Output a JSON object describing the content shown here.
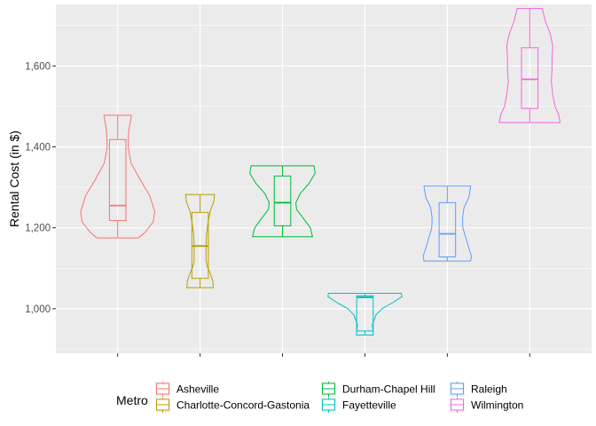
{
  "chart_data": {
    "type": "violin",
    "title": "",
    "xlabel": "",
    "ylabel": "Rental Cost (in $)",
    "ylim": [
      890,
      1752
    ],
    "yticks": [
      1000,
      1200,
      1400,
      1600
    ],
    "ytick_labels": [
      "1,000",
      "1,200",
      "1,400",
      "1,600"
    ],
    "grid": true,
    "legend_title": "Metro",
    "legend_position": "bottom",
    "series": [
      {
        "name": "Asheville",
        "color": "#F8766D",
        "min": 1175,
        "q1": 1218,
        "median": 1255,
        "q3": 1418,
        "max": 1478,
        "profile": [
          [
            1175,
            0.56
          ],
          [
            1190,
            0.75
          ],
          [
            1215,
            0.96
          ],
          [
            1240,
            1.0
          ],
          [
            1280,
            0.86
          ],
          [
            1320,
            0.6
          ],
          [
            1360,
            0.36
          ],
          [
            1400,
            0.28
          ],
          [
            1440,
            0.3
          ],
          [
            1478,
            0.37
          ]
        ]
      },
      {
        "name": "Charlotte-Concord-Gastonia",
        "color": "#B79F00",
        "min": 1052,
        "q1": 1075,
        "median": 1155,
        "q3": 1238,
        "max": 1282,
        "profile": [
          [
            1052,
            0.36
          ],
          [
            1070,
            0.34
          ],
          [
            1090,
            0.26
          ],
          [
            1105,
            0.19
          ],
          [
            1120,
            0.16
          ],
          [
            1150,
            0.16
          ],
          [
            1180,
            0.17
          ],
          [
            1210,
            0.21
          ],
          [
            1240,
            0.27
          ],
          [
            1265,
            0.37
          ],
          [
            1282,
            0.39
          ]
        ]
      },
      {
        "name": "Durham-Chapel Hill",
        "color": "#00BA38",
        "min": 1178,
        "q1": 1205,
        "median": 1262,
        "q3": 1328,
        "max": 1353,
        "profile": [
          [
            1178,
            0.81
          ],
          [
            1200,
            0.75
          ],
          [
            1225,
            0.55
          ],
          [
            1245,
            0.38
          ],
          [
            1262,
            0.36
          ],
          [
            1285,
            0.48
          ],
          [
            1310,
            0.72
          ],
          [
            1335,
            0.88
          ],
          [
            1353,
            0.85
          ]
        ]
      },
      {
        "name": "Fayetteville",
        "color": "#00BFC4",
        "min": 935,
        "q1": 945,
        "median": 1028,
        "q3": 1032,
        "max": 1038,
        "profile": [
          [
            935,
            0.23
          ],
          [
            960,
            0.2
          ],
          [
            985,
            0.3
          ],
          [
            1000,
            0.46
          ],
          [
            1015,
            0.75
          ],
          [
            1030,
            1.0
          ],
          [
            1038,
            0.98
          ]
        ]
      },
      {
        "name": "Raleigh",
        "color": "#619CFF",
        "min": 1118,
        "q1": 1128,
        "median": 1185,
        "q3": 1262,
        "max": 1303,
        "profile": [
          [
            1118,
            0.63
          ],
          [
            1130,
            0.65
          ],
          [
            1150,
            0.58
          ],
          [
            1175,
            0.5
          ],
          [
            1200,
            0.42
          ],
          [
            1225,
            0.41
          ],
          [
            1250,
            0.45
          ],
          [
            1275,
            0.58
          ],
          [
            1303,
            0.63
          ]
        ]
      },
      {
        "name": "Wilmington",
        "color": "#F564E3",
        "min": 1460,
        "q1": 1495,
        "median": 1567,
        "q3": 1645,
        "max": 1742,
        "profile": [
          [
            1460,
            0.82
          ],
          [
            1480,
            0.78
          ],
          [
            1500,
            0.68
          ],
          [
            1530,
            0.62
          ],
          [
            1560,
            0.58
          ],
          [
            1590,
            0.6
          ],
          [
            1620,
            0.6
          ],
          [
            1650,
            0.62
          ],
          [
            1680,
            0.55
          ],
          [
            1710,
            0.42
          ],
          [
            1742,
            0.34
          ]
        ]
      }
    ]
  }
}
